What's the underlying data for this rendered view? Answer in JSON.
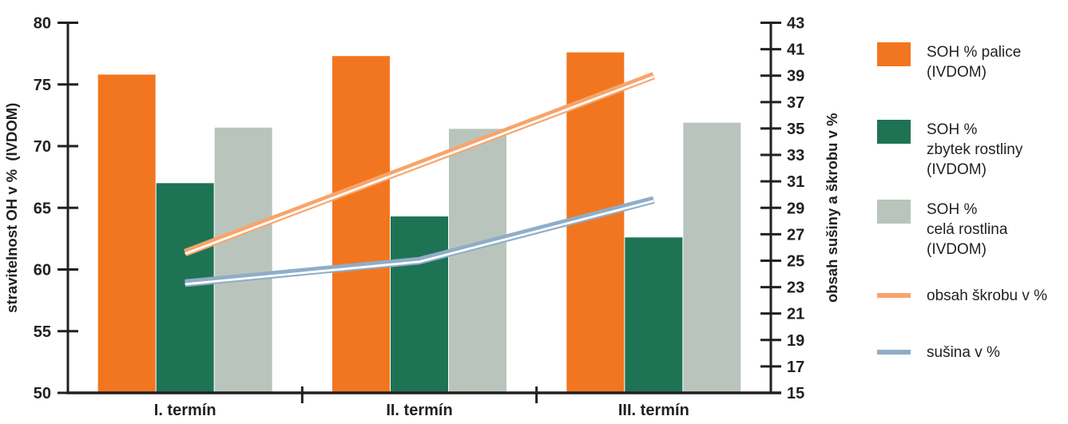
{
  "colors": {
    "axis": "#231F20",
    "background": "#FFFFFF",
    "bar_orange": "#F2761F",
    "bar_green": "#1E7355",
    "bar_gray": "#B9C5BC",
    "line_orange": "#F8A46B",
    "line_blue": "#8FADC6"
  },
  "legend": {
    "items": [
      {
        "type": "rect",
        "color": "#F2761F",
        "label": "SOH % palice\n(IVDOM)"
      },
      {
        "type": "rect",
        "color": "#1E7355",
        "label": "SOH %\nzbytek rostliny\n(IVDOM)"
      },
      {
        "type": "rect",
        "color": "#B9C5BC",
        "label": "SOH %\ncelá rostlina\n(IVDOM)"
      },
      {
        "type": "line",
        "color": "#F8A46B",
        "label": "obsah škrobu v %"
      },
      {
        "type": "line",
        "color": "#8FADC6",
        "label": "sušina v %"
      }
    ]
  },
  "chart_data": {
    "type": "bar",
    "subtype": "bar+line combo, dual y-axis",
    "categories": [
      "I. termín",
      "II. termín",
      "III. termín"
    ],
    "bar_series": [
      {
        "name": "SOH % palice (IVDOM)",
        "color": "#F2761F",
        "axis": "left",
        "values": [
          75.8,
          77.3,
          77.6
        ]
      },
      {
        "name": "SOH % zbytek rostliny (IVDOM)",
        "color": "#1E7355",
        "axis": "left",
        "values": [
          67.0,
          64.3,
          62.6
        ]
      },
      {
        "name": "SOH % celá rostlina (IVDOM)",
        "color": "#B9C5BC",
        "axis": "left",
        "values": [
          71.5,
          71.4,
          71.9
        ]
      }
    ],
    "line_series": [
      {
        "name": "obsah škrobu v %",
        "color": "#F8A46B",
        "axis": "right",
        "values": [
          25.6,
          32.3,
          39.0
        ]
      },
      {
        "name": "sušina v %",
        "color": "#8FADC6",
        "axis": "right",
        "values": [
          23.3,
          25.0,
          29.6
        ]
      }
    ],
    "left_axis": {
      "label": "stravitelnost OH v %  (IVDOM)",
      "min": 50,
      "max": 80,
      "step": 5
    },
    "right_axis": {
      "label": "obsah sušiny a škrobu v %",
      "min": 15,
      "max": 43,
      "step": 2
    },
    "title": "",
    "grid": false,
    "legend_position": "right"
  }
}
